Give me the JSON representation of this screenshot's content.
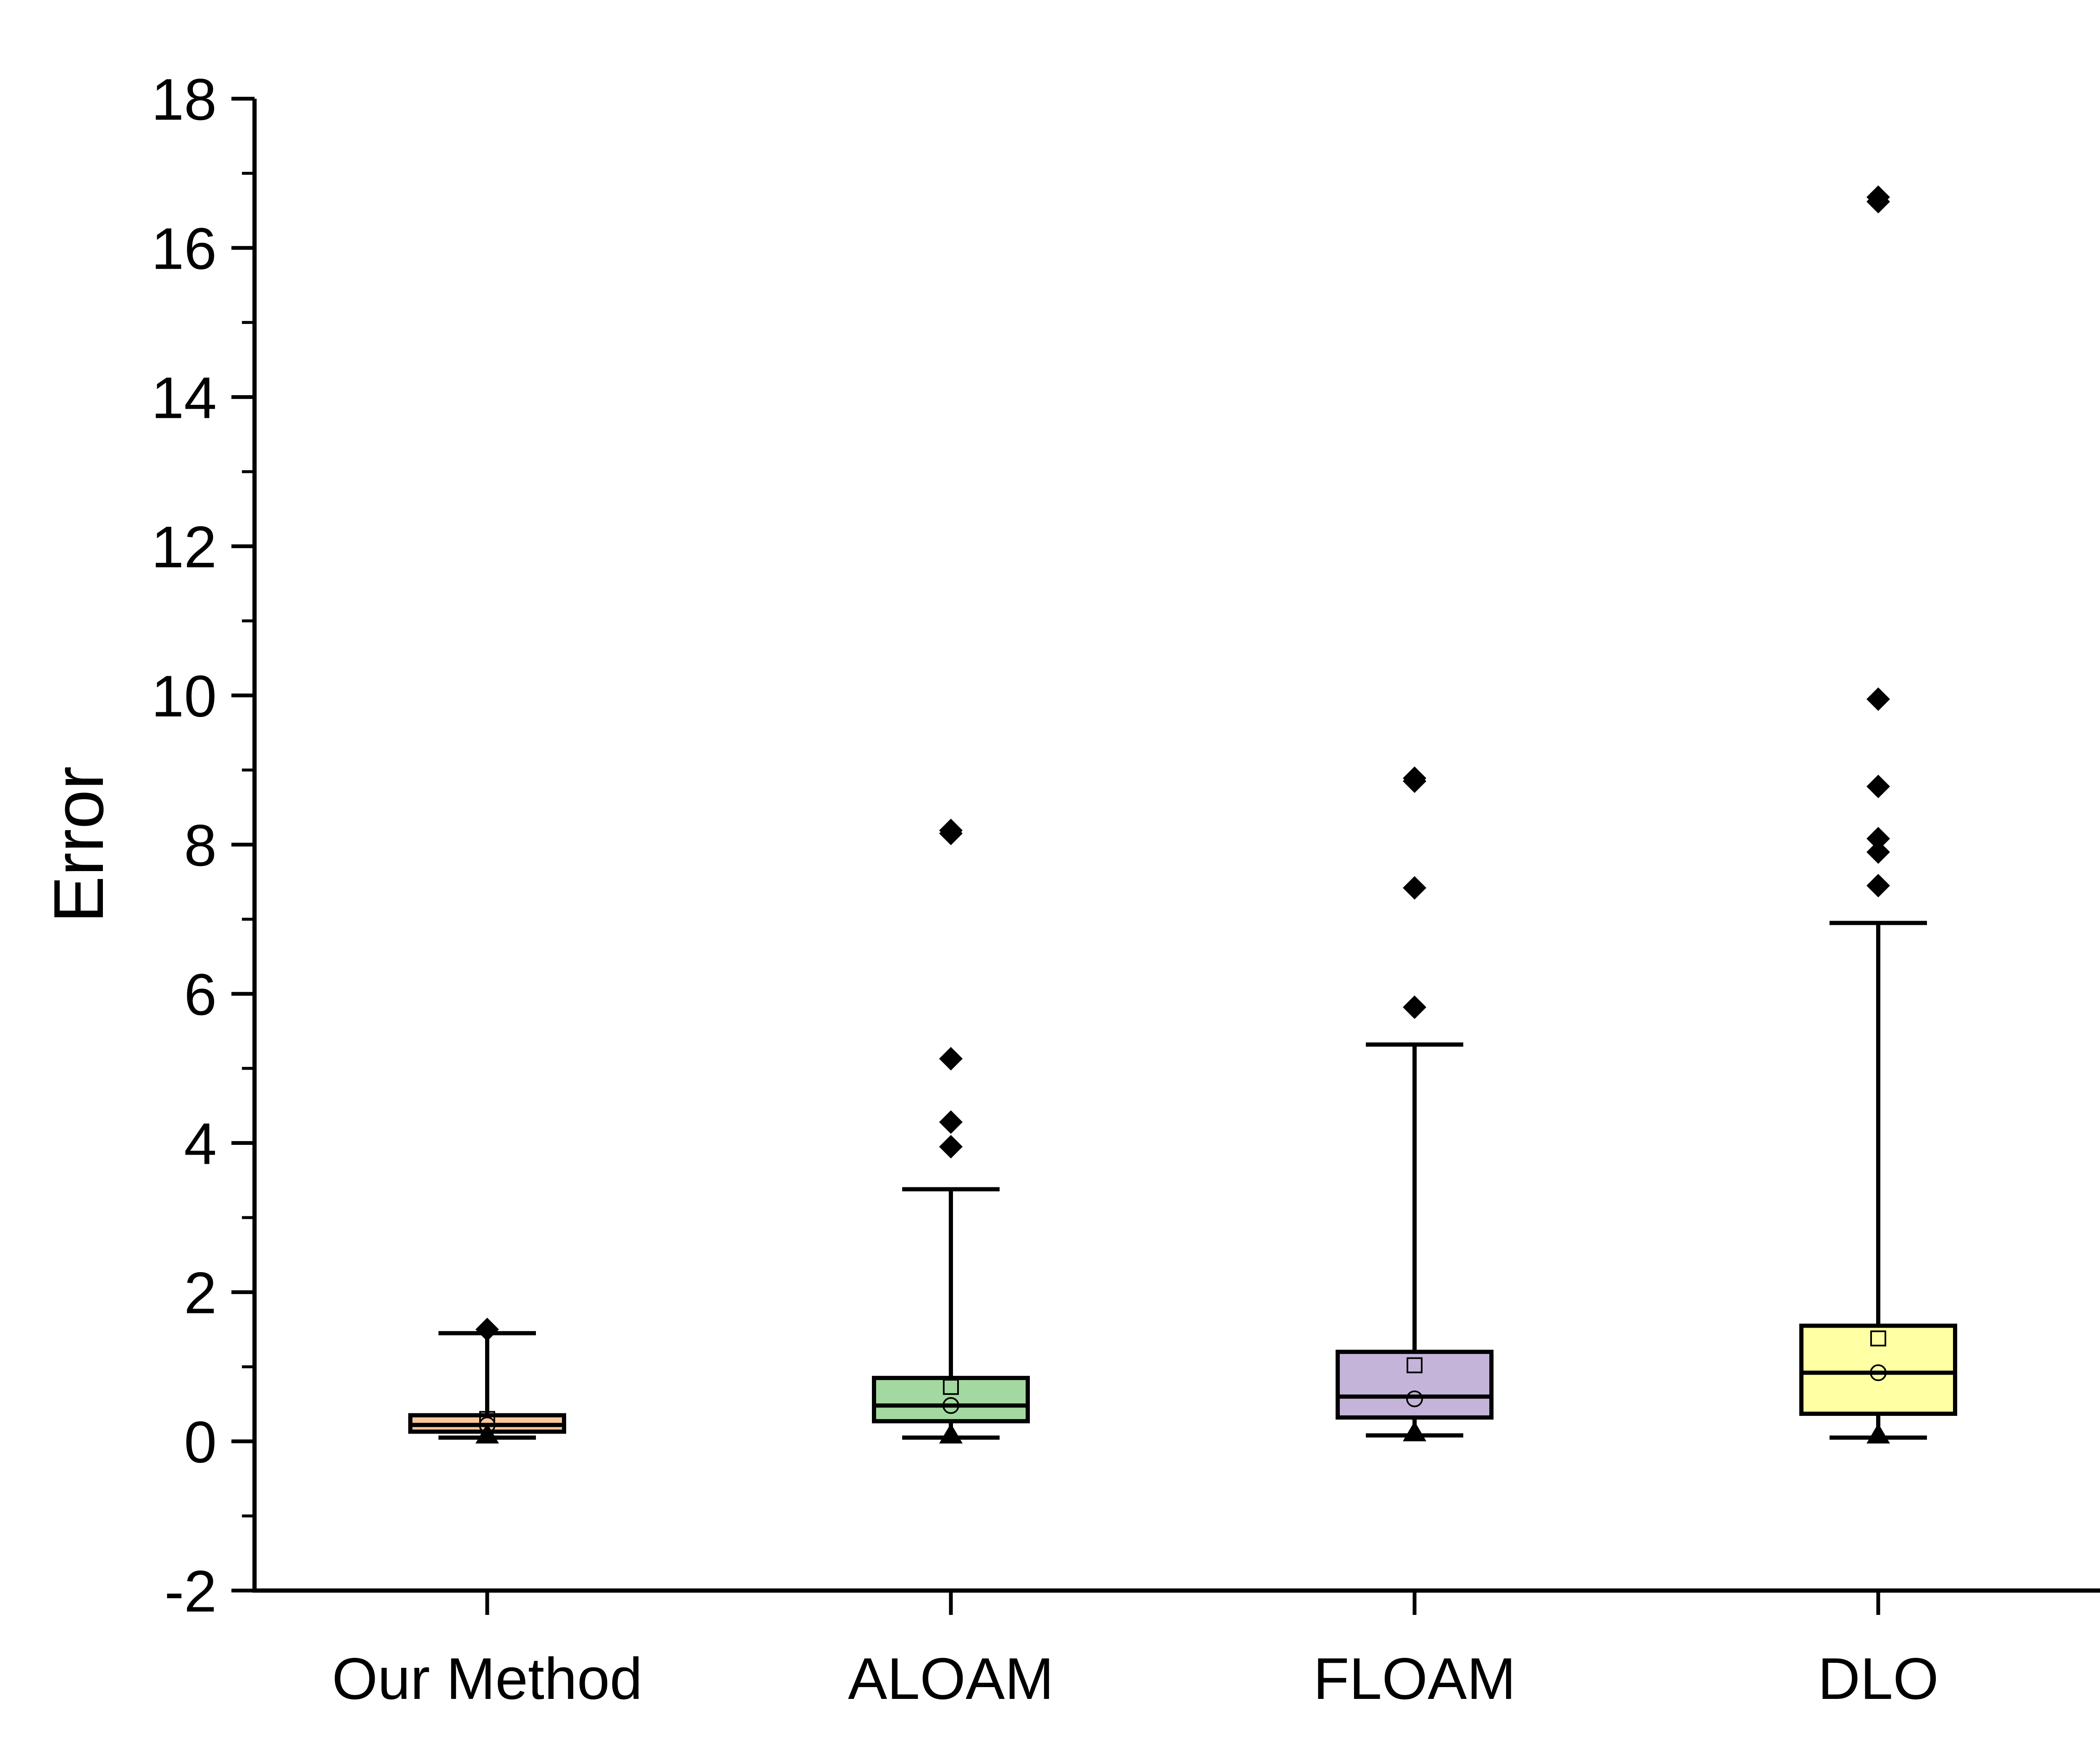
{
  "chart_data": {
    "type": "box",
    "title": "",
    "xlabel": "",
    "ylabel": "Error",
    "ylim": [
      -2,
      18
    ],
    "yticks": [
      "-2",
      "0",
      "2",
      "4",
      "6",
      "8",
      "10",
      "12",
      "14",
      "16",
      "18"
    ],
    "grid": false,
    "categories": [
      "Our Method",
      "ALOAM",
      "FLOAM",
      "DLO"
    ],
    "boxes": [
      {
        "name": "Our Method",
        "color": "#F9C89B",
        "whisker_low": 0.05,
        "q1": 0.13,
        "median": 0.22,
        "q3": 0.35,
        "whisker_high": 1.45,
        "mean": 0.3,
        "center_circle": 0.22,
        "min": 0.05,
        "outliers": [
          1.5
        ]
      },
      {
        "name": "ALOAM",
        "color": "#A3D9A0",
        "whisker_low": 0.05,
        "q1": 0.27,
        "median": 0.48,
        "q3": 0.85,
        "whisker_high": 3.38,
        "mean": 0.73,
        "center_circle": 0.48,
        "min": 0.05,
        "outliers": [
          3.95,
          4.28,
          5.13,
          8.15,
          8.19
        ]
      },
      {
        "name": "FLOAM",
        "color": "#C5B4DA",
        "whisker_low": 0.08,
        "q1": 0.32,
        "median": 0.6,
        "q3": 1.2,
        "whisker_high": 5.32,
        "mean": 1.02,
        "center_circle": 0.57,
        "min": 0.08,
        "outliers": [
          5.82,
          7.42,
          8.85,
          8.89
        ]
      },
      {
        "name": "DLO",
        "color": "#FFFFA3",
        "whisker_low": 0.05,
        "q1": 0.37,
        "median": 0.92,
        "q3": 1.55,
        "whisker_high": 6.95,
        "mean": 1.38,
        "center_circle": 0.92,
        "min": 0.05,
        "outliers": [
          7.45,
          7.9,
          8.08,
          8.78,
          9.95,
          16.62,
          16.68
        ]
      }
    ]
  }
}
